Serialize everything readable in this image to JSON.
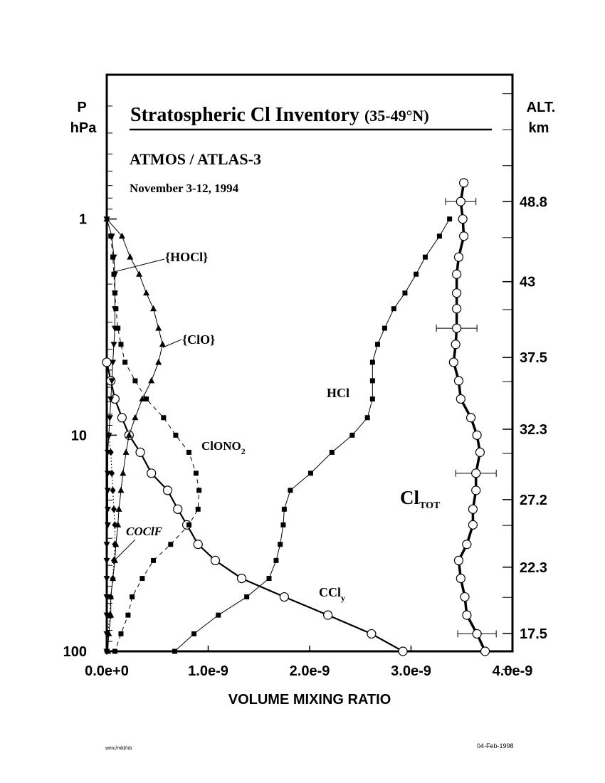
{
  "chart_data": {
    "type": "profile",
    "title": "Stratospheric Cl Inventory",
    "title_suffix": "(35-49°N)",
    "subtitle": "ATMOS / ATLAS-3",
    "date": "November 3-12, 1994",
    "y_label": "P",
    "y_unit": "hPa",
    "y2_label": "ALT.",
    "y2_unit": "km",
    "x_label": "VOLUME MIXING RATIO",
    "footer_left": "wmc/mld/nb",
    "footer_right": "04-Feb-1998",
    "xlim": [
      0,
      4e-09
    ],
    "xticks": [
      {
        "value": 0,
        "label": "0.0e+0"
      },
      {
        "value": 1e-09,
        "label": "1.0e-9"
      },
      {
        "value": 2e-09,
        "label": "2.0e-9"
      },
      {
        "value": 3e-09,
        "label": "3.0e-9"
      },
      {
        "value": 4e-09,
        "label": "4.0e-9"
      }
    ],
    "ylim": [
      100,
      0.215
    ],
    "y_log": true,
    "y_inverted": true,
    "yticks": [
      1,
      10,
      100
    ],
    "y2lim": [
      16.2,
      58.0
    ],
    "y2ticks": [
      17.5,
      22.3,
      27.2,
      32.3,
      37.5,
      43.0,
      48.8
    ],
    "series": [
      {
        "name": "Cl",
        "sub": "TOT",
        "marker": "circle",
        "line": "thick",
        "y": [
          0.68,
          0.83,
          1,
          1.2,
          1.5,
          1.8,
          2.2,
          2.6,
          3.2,
          3.8,
          4.6,
          5.6,
          6.8,
          8.3,
          10,
          12,
          15,
          18,
          22,
          26,
          32,
          38,
          46,
          56,
          68,
          83,
          100
        ],
        "x": [
          3.52e-09,
          3.49e-09,
          3.51e-09,
          3.52e-09,
          3.47e-09,
          3.45e-09,
          3.45e-09,
          3.45e-09,
          3.45e-09,
          3.44e-09,
          3.42e-09,
          3.47e-09,
          3.49e-09,
          3.59e-09,
          3.65e-09,
          3.68e-09,
          3.64e-09,
          3.64e-09,
          3.61e-09,
          3.61e-09,
          3.55e-09,
          3.47e-09,
          3.49e-09,
          3.53e-09,
          3.55e-09,
          3.65e-09,
          3.73e-09
        ],
        "errors": [
          null,
          1.5e-10,
          null,
          null,
          null,
          null,
          null,
          null,
          2e-10,
          null,
          null,
          null,
          null,
          null,
          null,
          null,
          2e-10,
          null,
          null,
          null,
          null,
          null,
          null,
          null,
          null,
          1.9e-10,
          null
        ]
      },
      {
        "name": "HCl",
        "marker": "square",
        "line": "solid",
        "y": [
          1,
          1.2,
          1.5,
          1.8,
          2.2,
          2.6,
          3.2,
          3.8,
          4.6,
          5.6,
          6.8,
          8.3,
          10,
          12,
          15,
          18,
          22,
          26,
          32,
          38,
          46,
          56,
          68,
          83,
          100
        ],
        "x": [
          3.38e-09,
          3.28e-09,
          3.14e-09,
          3.05e-09,
          2.94e-09,
          2.83e-09,
          2.74e-09,
          2.67e-09,
          2.62e-09,
          2.62e-09,
          2.62e-09,
          2.57e-09,
          2.42e-09,
          2.22e-09,
          2.01e-09,
          1.81e-09,
          1.75e-09,
          1.74e-09,
          1.71e-09,
          1.67e-09,
          1.6e-09,
          1.38e-09,
          1.1e-09,
          8.6e-10,
          6.7e-10
        ]
      },
      {
        "name": "CCl",
        "sub": "y",
        "marker": "circle",
        "line": "medium",
        "y": [
          4.6,
          5.6,
          6.8,
          8.3,
          10,
          12,
          15,
          18,
          22,
          26,
          32,
          38,
          46,
          56,
          68,
          83,
          100
        ],
        "x": [
          0,
          4e-11,
          8e-11,
          1.5e-10,
          2.2e-10,
          3.3e-10,
          4.4e-10,
          6e-10,
          7e-10,
          7.9e-10,
          9e-10,
          1.07e-09,
          1.33e-09,
          1.75e-09,
          2.18e-09,
          2.61e-09,
          2.92e-09
        ]
      },
      {
        "name": "ClONO",
        "sub": "2",
        "marker": "square",
        "line": "dashed",
        "y": [
          1.2,
          1.5,
          1.8,
          2.2,
          2.6,
          3.2,
          3.8,
          4.6,
          5.6,
          6.8,
          8.3,
          10,
          12,
          15,
          18,
          22,
          26,
          32,
          38,
          46,
          56,
          68,
          83,
          100
        ],
        "x": [
          4e-11,
          6e-11,
          7e-11,
          8e-11,
          9e-11,
          1.1e-10,
          1.4e-10,
          1.8e-10,
          2.8e-10,
          3.9e-10,
          5.6e-10,
          6.8e-10,
          8.1e-10,
          8.8e-10,
          9.1e-10,
          9e-10,
          8.1e-10,
          6.3e-10,
          4.6e-10,
          3.5e-10,
          2.5e-10,
          2.1e-10,
          1.4e-10,
          8e-11
        ]
      },
      {
        "name": "{ClO}",
        "marker": "triangle-up",
        "line": "solid",
        "y": [
          1,
          1.2,
          1.5,
          1.8,
          2.2,
          2.6,
          3.2,
          3.8,
          4.6,
          5.6,
          6.8,
          8.3,
          10,
          12,
          15,
          18,
          22,
          26,
          32,
          38,
          46,
          56,
          68,
          83,
          100
        ],
        "x": [
          0,
          1.5e-10,
          2.3e-10,
          3.2e-10,
          3.9e-10,
          4.6e-10,
          5.1e-10,
          5.5e-10,
          5.1e-10,
          4.4e-10,
          3.5e-10,
          2.8e-10,
          2.2e-10,
          1.9e-10,
          1.6e-10,
          1.4e-10,
          1.2e-10,
          1.1e-10,
          9e-11,
          8e-11,
          6e-11,
          4e-11,
          4e-11,
          2e-11,
          1e-11
        ]
      },
      {
        "name": "{HOCl}",
        "marker": "triangle-down",
        "line": "solid",
        "y": [
          1,
          1.2,
          1.5,
          1.8,
          2.2,
          2.6,
          3.2,
          3.8,
          4.6,
          5.6,
          6.8,
          8.3,
          10,
          12,
          15,
          18,
          22,
          26,
          32,
          38,
          46,
          56,
          68,
          83,
          100
        ],
        "x": [
          0,
          5e-11,
          7e-11,
          8e-11,
          8e-11,
          8e-11,
          8e-11,
          7e-11,
          6e-11,
          5e-11,
          4e-11,
          3e-11,
          2e-11,
          1e-11,
          1e-11,
          1e-11,
          1e-11,
          1e-11,
          0,
          0,
          0,
          0,
          0,
          0,
          0
        ]
      },
      {
        "name": "COClF",
        "marker": "diamond",
        "line": "dotted",
        "y": [
          10,
          12,
          15,
          18,
          22,
          26,
          32,
          38,
          46,
          56,
          68,
          83,
          100
        ],
        "x": [
          2e-11,
          4e-11,
          5e-11,
          6e-11,
          7e-11,
          8e-11,
          8e-11,
          7e-11,
          6e-11,
          4e-11,
          3e-11,
          1e-11,
          0
        ]
      }
    ]
  }
}
